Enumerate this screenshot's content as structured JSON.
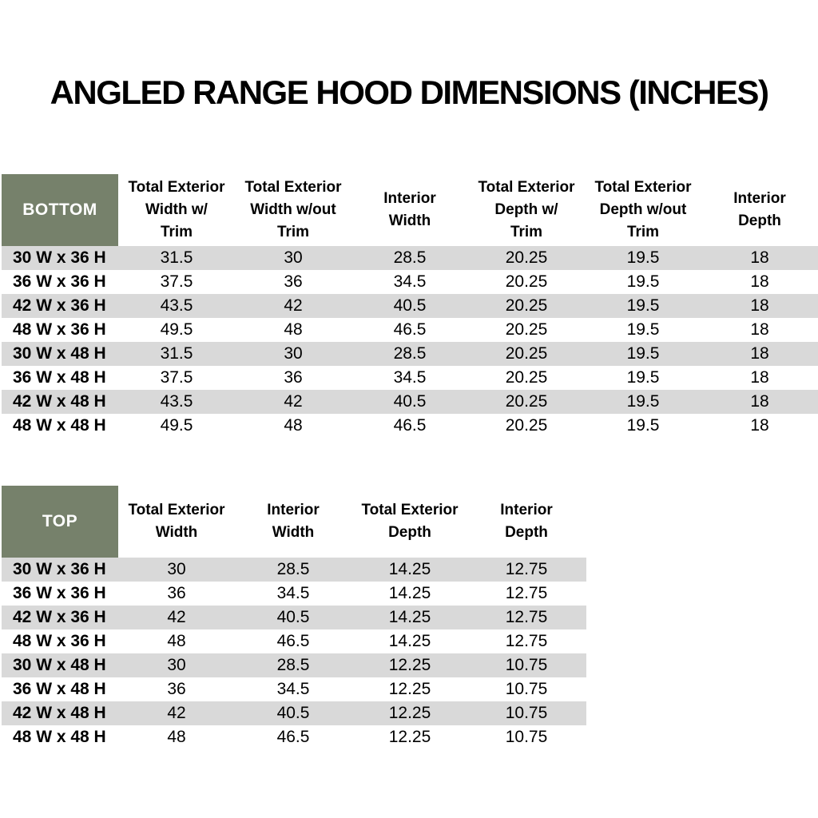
{
  "title": "ANGLED RANGE HOOD DIMENSIONS (INCHES)",
  "colors": {
    "header_green": "#76816B",
    "header_text": "#FFFFFF",
    "row_stripe": "#D9D9D9",
    "body_text": "#000000",
    "background": "#FFFFFF"
  },
  "tables": [
    {
      "name": "bottom",
      "label": "BOTTOM",
      "columns": [
        "Total Exterior\nWidth w/\nTrim",
        "Total Exterior\nWidth w/out\nTrim",
        "Interior\nWidth",
        "Total Exterior\nDepth w/\nTrim",
        "Total Exterior\nDepth w/out\nTrim",
        "Interior\nDepth"
      ],
      "rows": [
        {
          "label": "30 W x 36 H",
          "values": [
            "31.5",
            "30",
            "28.5",
            "20.25",
            "19.5",
            "18"
          ]
        },
        {
          "label": "36 W x 36 H",
          "values": [
            "37.5",
            "36",
            "34.5",
            "20.25",
            "19.5",
            "18"
          ]
        },
        {
          "label": "42 W x 36 H",
          "values": [
            "43.5",
            "42",
            "40.5",
            "20.25",
            "19.5",
            "18"
          ]
        },
        {
          "label": "48 W x 36 H",
          "values": [
            "49.5",
            "48",
            "46.5",
            "20.25",
            "19.5",
            "18"
          ]
        },
        {
          "label": "30 W x 48 H",
          "values": [
            "31.5",
            "30",
            "28.5",
            "20.25",
            "19.5",
            "18"
          ]
        },
        {
          "label": "36 W x 48 H",
          "values": [
            "37.5",
            "36",
            "34.5",
            "20.25",
            "19.5",
            "18"
          ]
        },
        {
          "label": "42 W x 48 H",
          "values": [
            "43.5",
            "42",
            "40.5",
            "20.25",
            "19.5",
            "18"
          ]
        },
        {
          "label": "48 W x 48 H",
          "values": [
            "49.5",
            "48",
            "46.5",
            "20.25",
            "19.5",
            "18"
          ]
        }
      ]
    },
    {
      "name": "top",
      "label": "TOP",
      "columns": [
        "Total Exterior\nWidth",
        "Interior\nWidth",
        "Total Exterior\nDepth",
        "Interior\nDepth"
      ],
      "rows": [
        {
          "label": "30 W x 36 H",
          "values": [
            "30",
            "28.5",
            "14.25",
            "12.75"
          ]
        },
        {
          "label": "36 W x 36 H",
          "values": [
            "36",
            "34.5",
            "14.25",
            "12.75"
          ]
        },
        {
          "label": "42 W x 36 H",
          "values": [
            "42",
            "40.5",
            "14.25",
            "12.75"
          ]
        },
        {
          "label": "48 W x 36 H",
          "values": [
            "48",
            "46.5",
            "14.25",
            "12.75"
          ]
        },
        {
          "label": "30 W x 48 H",
          "values": [
            "30",
            "28.5",
            "12.25",
            "10.75"
          ]
        },
        {
          "label": "36 W x 48 H",
          "values": [
            "36",
            "34.5",
            "12.25",
            "10.75"
          ]
        },
        {
          "label": "42 W x 48 H",
          "values": [
            "42",
            "40.5",
            "12.25",
            "10.75"
          ]
        },
        {
          "label": "48 W x 48 H",
          "values": [
            "48",
            "46.5",
            "12.25",
            "10.75"
          ]
        }
      ]
    }
  ]
}
